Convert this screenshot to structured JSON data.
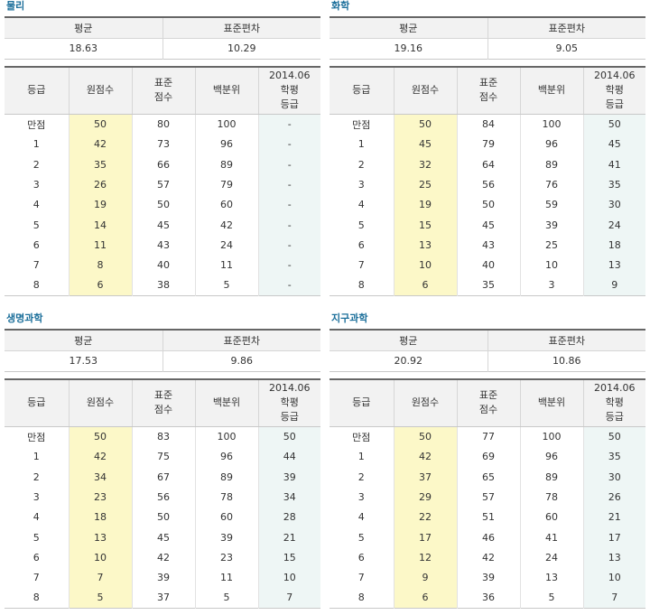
{
  "panels": [
    {
      "title": "물리",
      "summary": {
        "mean_label": "평균",
        "sd_label": "표준편차",
        "mean": "18.63",
        "sd": "10.29"
      },
      "headers": [
        "등급",
        "원점수",
        "표준\n점수",
        "백분위",
        "2014.06\n학평\n등급"
      ],
      "rows": [
        [
          "만점",
          "50",
          "80",
          "100",
          "-"
        ],
        [
          "1",
          "42",
          "73",
          "96",
          "-"
        ],
        [
          "2",
          "35",
          "66",
          "89",
          "-"
        ],
        [
          "3",
          "26",
          "57",
          "79",
          "-"
        ],
        [
          "4",
          "19",
          "50",
          "60",
          "-"
        ],
        [
          "5",
          "14",
          "45",
          "42",
          "-"
        ],
        [
          "6",
          "11",
          "43",
          "24",
          "-"
        ],
        [
          "7",
          "8",
          "40",
          "11",
          "-"
        ],
        [
          "8",
          "6",
          "38",
          "5",
          "-"
        ]
      ]
    },
    {
      "title": "화학",
      "summary": {
        "mean_label": "평균",
        "sd_label": "표준편차",
        "mean": "19.16",
        "sd": "9.05"
      },
      "headers": [
        "등급",
        "원점수",
        "표준\n점수",
        "백분위",
        "2014.06\n학평\n등급"
      ],
      "rows": [
        [
          "만점",
          "50",
          "84",
          "100",
          "50"
        ],
        [
          "1",
          "45",
          "79",
          "96",
          "45"
        ],
        [
          "2",
          "32",
          "64",
          "89",
          "41"
        ],
        [
          "3",
          "25",
          "56",
          "76",
          "35"
        ],
        [
          "4",
          "19",
          "50",
          "59",
          "30"
        ],
        [
          "5",
          "15",
          "45",
          "39",
          "24"
        ],
        [
          "6",
          "13",
          "43",
          "25",
          "18"
        ],
        [
          "7",
          "10",
          "40",
          "10",
          "13"
        ],
        [
          "8",
          "6",
          "35",
          "3",
          "9"
        ]
      ]
    },
    {
      "title": "생명과학",
      "summary": {
        "mean_label": "평균",
        "sd_label": "표준편차",
        "mean": "17.53",
        "sd": "9.86"
      },
      "headers": [
        "등급",
        "원점수",
        "표준\n점수",
        "백분위",
        "2014.06\n학평\n등급"
      ],
      "rows": [
        [
          "만점",
          "50",
          "83",
          "100",
          "50"
        ],
        [
          "1",
          "42",
          "75",
          "96",
          "44"
        ],
        [
          "2",
          "34",
          "67",
          "89",
          "39"
        ],
        [
          "3",
          "23",
          "56",
          "78",
          "34"
        ],
        [
          "4",
          "18",
          "50",
          "60",
          "28"
        ],
        [
          "5",
          "13",
          "45",
          "39",
          "21"
        ],
        [
          "6",
          "10",
          "42",
          "23",
          "15"
        ],
        [
          "7",
          "7",
          "39",
          "11",
          "10"
        ],
        [
          "8",
          "5",
          "37",
          "5",
          "7"
        ]
      ]
    },
    {
      "title": "지구과학",
      "summary": {
        "mean_label": "평균",
        "sd_label": "표준편차",
        "mean": "20.92",
        "sd": "10.86"
      },
      "headers": [
        "등급",
        "원점수",
        "표준\n점수",
        "백분위",
        "2014.06\n학평\n등급"
      ],
      "rows": [
        [
          "만점",
          "50",
          "77",
          "100",
          "50"
        ],
        [
          "1",
          "42",
          "69",
          "96",
          "35"
        ],
        [
          "2",
          "37",
          "65",
          "89",
          "30"
        ],
        [
          "3",
          "29",
          "57",
          "78",
          "26"
        ],
        [
          "4",
          "22",
          "51",
          "60",
          "21"
        ],
        [
          "5",
          "17",
          "46",
          "41",
          "17"
        ],
        [
          "6",
          "12",
          "42",
          "24",
          "13"
        ],
        [
          "7",
          "9",
          "39",
          "13",
          "10"
        ],
        [
          "8",
          "6",
          "36",
          "5",
          "7"
        ]
      ]
    }
  ]
}
